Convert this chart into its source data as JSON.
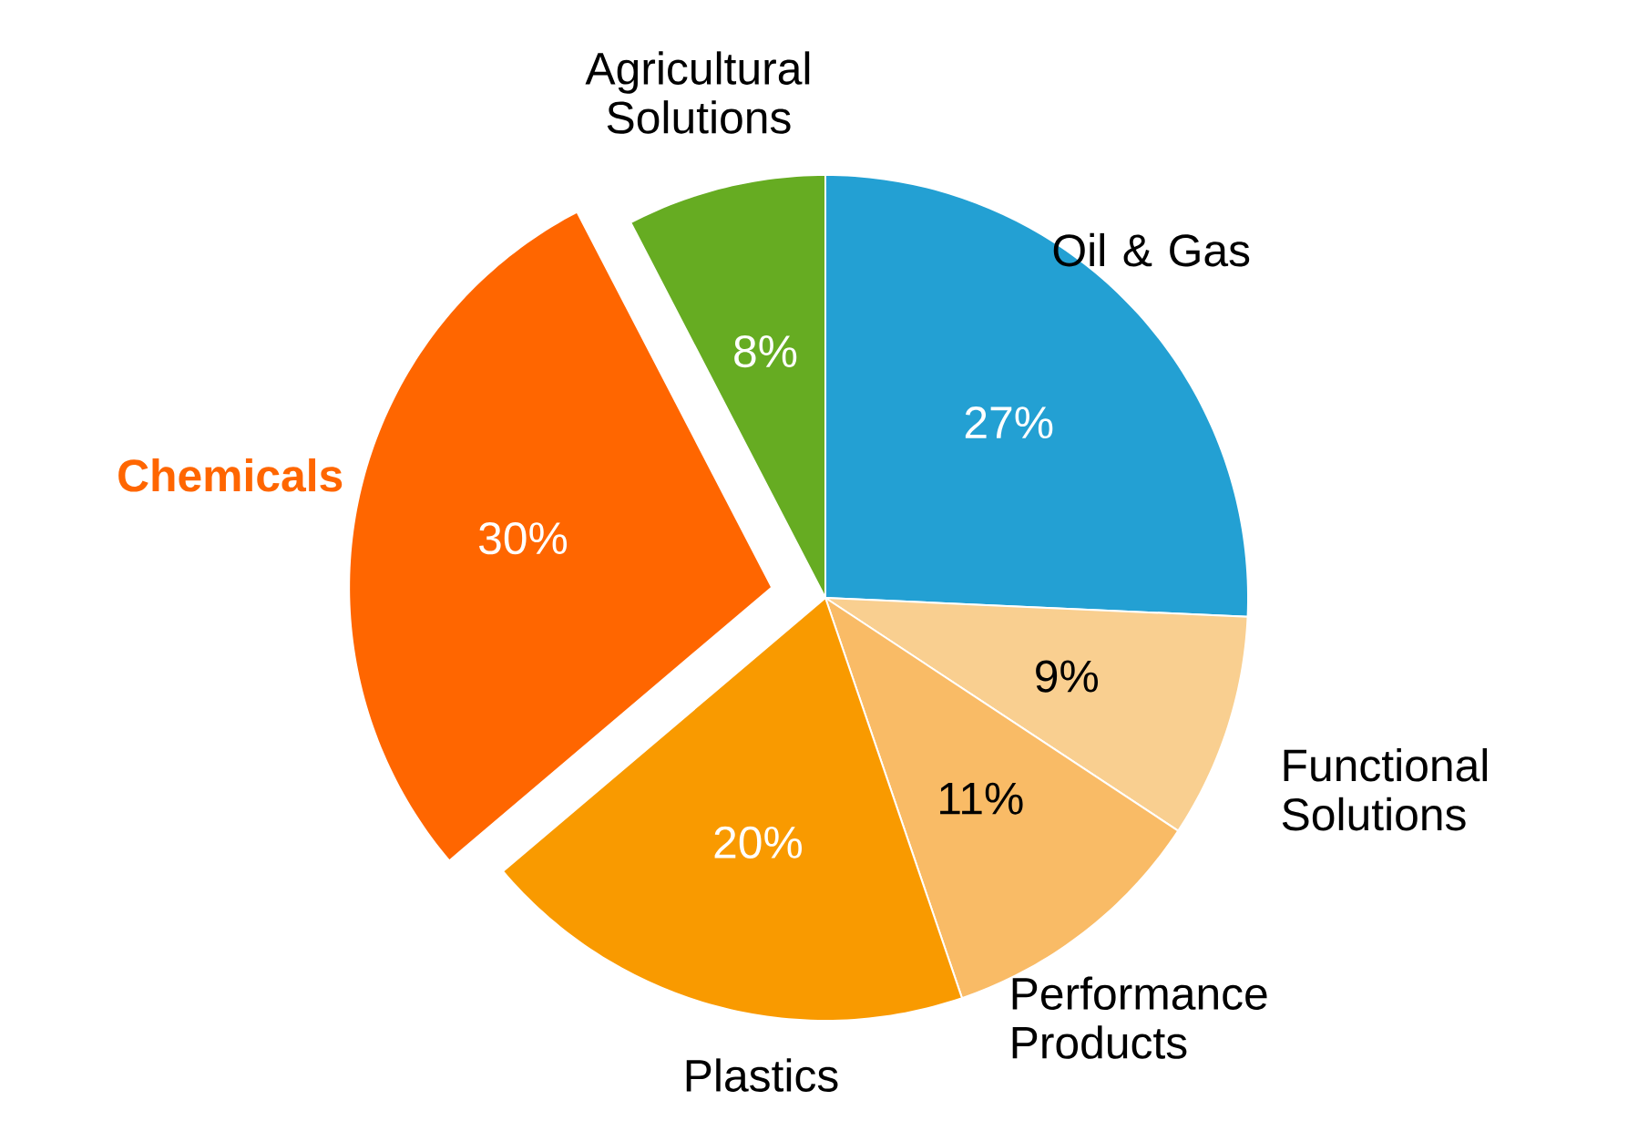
{
  "chart_data": {
    "type": "pie",
    "categories": [
      "Oil & Gas",
      "Functional Solutions",
      "Performance Products",
      "Plastics",
      "Chemicals",
      "Agricultural Solutions"
    ],
    "values": [
      27,
      9,
      11,
      20,
      30,
      8
    ],
    "colors": [
      "#23a0d3",
      "#f9cf90",
      "#f9bb66",
      "#f99a00",
      "#ff6600",
      "#66ac22"
    ],
    "value_labels": [
      "27%",
      "9%",
      "11%",
      "20%",
      "30%",
      "8%"
    ]
  }
}
